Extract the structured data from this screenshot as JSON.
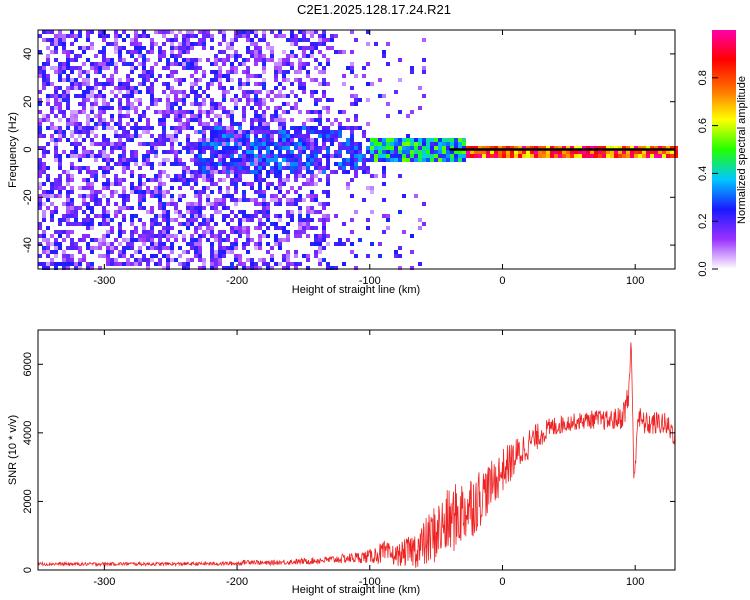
{
  "title": "C2E1.2025.128.17.24.R21",
  "chart_data": [
    {
      "type": "heatmap",
      "xlabel": "Height of straight line (km)",
      "ylabel": "Frequency (Hz)",
      "xlim": [
        -350,
        130
      ],
      "ylim": [
        -50,
        50
      ],
      "xticks": [
        -300,
        -200,
        -100,
        0,
        100
      ],
      "yticks": [
        -40,
        -20,
        0,
        20,
        40
      ],
      "colorbar": {
        "label": "Normalized spectral amplitude",
        "range": [
          0.0,
          1.0
        ],
        "ticks": [
          0.0,
          0.2,
          0.4,
          0.6,
          0.8
        ],
        "colors": [
          "#ffffff",
          "#9a31ff",
          "#1a1aff",
          "#00c8ff",
          "#22ff00",
          "#ffff00",
          "#ff7000",
          "#ff0000",
          "#ff00aa"
        ]
      },
      "line_at_y": 0,
      "line_color": "#000000"
    },
    {
      "type": "line",
      "xlabel": "Height of straight line (km)",
      "ylabel": "SNR (10 * v/v)",
      "xlim": [
        -350,
        130
      ],
      "ylim": [
        0,
        7000
      ],
      "xticks": [
        -300,
        -200,
        -100,
        0,
        100
      ],
      "yticks": [
        0,
        2000,
        4000,
        6000
      ],
      "series": [
        {
          "color": "#ee2222",
          "x": [
            -350,
            -320,
            -290,
            -260,
            -230,
            -200,
            -190,
            -180,
            -170,
            -150,
            -130,
            -110,
            -100,
            -90,
            -80,
            -70,
            -60,
            -50,
            -40,
            -30,
            -20,
            -10,
            0,
            10,
            20,
            30,
            40,
            50,
            60,
            70,
            80,
            90,
            95,
            97,
            99,
            102,
            105,
            110,
            120,
            130
          ],
          "y": [
            180,
            170,
            180,
            175,
            180,
            190,
            250,
            200,
            220,
            250,
            300,
            360,
            400,
            500,
            420,
            550,
            700,
            1100,
            1400,
            1700,
            2000,
            2400,
            2900,
            3300,
            3700,
            4000,
            4200,
            4300,
            4350,
            4400,
            4350,
            4450,
            5000,
            6800,
            2500,
            4500,
            4300,
            4250,
            4300,
            4000
          ],
          "noise": [
            50,
            50,
            50,
            50,
            50,
            60,
            80,
            60,
            70,
            90,
            110,
            160,
            200,
            350,
            300,
            450,
            700,
            900,
            1000,
            1000,
            950,
            700,
            650,
            550,
            450,
            350,
            300,
            250,
            250,
            280,
            300,
            350,
            500,
            200,
            300,
            400,
            350,
            350,
            350,
            400
          ]
        }
      ]
    }
  ]
}
